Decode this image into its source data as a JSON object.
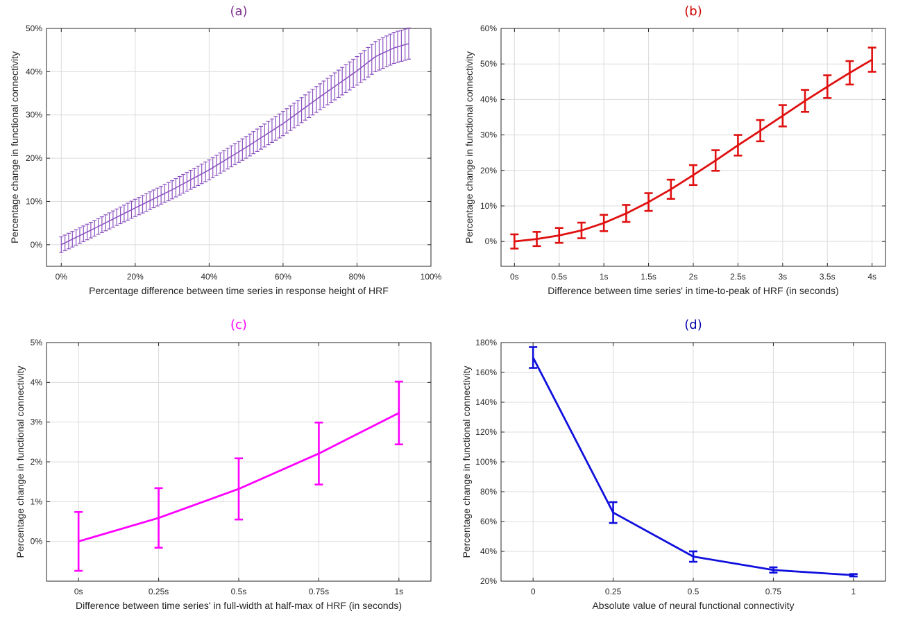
{
  "chart_data": [
    {
      "id": "a",
      "type": "errorbar-line",
      "title": "(a)",
      "title_color": "#7e2f8e",
      "xlabel": "Percentage difference between time series in response height of HRF",
      "ylabel": "Percentage change in functional connectivity",
      "xlim": [
        -4,
        100
      ],
      "ylim": [
        -5,
        50
      ],
      "xticks": [
        0,
        20,
        40,
        60,
        80,
        100
      ],
      "xtick_labels": [
        "0%",
        "20%",
        "40%",
        "60%",
        "80%",
        "100%"
      ],
      "yticks": [
        0,
        10,
        20,
        30,
        40,
        50
      ],
      "ytick_labels": [
        "0%",
        "10%",
        "20%",
        "30%",
        "40%",
        "50%"
      ],
      "grid": true,
      "color": "#8a50c0",
      "series": [
        {
          "name": "response height",
          "x_start": 0,
          "x_end": 94,
          "x_step": 1,
          "x_control": [
            0,
            10,
            20,
            30,
            40,
            50,
            60,
            70,
            80,
            85,
            90,
            94
          ],
          "y_control": [
            0,
            4.2,
            8.5,
            12.7,
            17.3,
            22.5,
            28,
            34.2,
            40.2,
            43.5,
            45.5,
            46.5
          ],
          "err_control": [
            1.8,
            1.8,
            2,
            2.1,
            2.3,
            2.5,
            2.8,
            3,
            3.3,
            3.5,
            3.6,
            3.6
          ]
        }
      ]
    },
    {
      "id": "b",
      "type": "errorbar-line",
      "title": "(b)",
      "title_color": "#cc0000",
      "xlabel": "Difference between time series' in time-to-peak of HRF (in seconds)",
      "ylabel": "Percentage change in functional connectivity",
      "xlim": [
        -0.15,
        4.15
      ],
      "ylim": [
        -7,
        60
      ],
      "xticks": [
        0,
        0.5,
        1,
        1.5,
        2,
        2.5,
        3,
        3.5,
        4
      ],
      "xtick_labels": [
        "0s",
        "0.5s",
        "1s",
        "1.5s",
        "2s",
        "2.5s",
        "3s",
        "3.5s",
        "4s"
      ],
      "yticks": [
        0,
        10,
        20,
        30,
        40,
        50,
        60
      ],
      "ytick_labels": [
        "0%",
        "10%",
        "20%",
        "30%",
        "40%",
        "50%",
        "60%"
      ],
      "grid": true,
      "color": "#e01010",
      "series": [
        {
          "name": "time-to-peak",
          "x": [
            0,
            0.25,
            0.5,
            0.75,
            1,
            1.25,
            1.5,
            1.75,
            2,
            2.25,
            2.5,
            2.75,
            3,
            3.25,
            3.5,
            3.75,
            4
          ],
          "y": [
            0,
            0.7,
            1.7,
            3.1,
            5.2,
            7.9,
            11.1,
            14.7,
            18.7,
            22.8,
            27.1,
            31.2,
            35.4,
            39.6,
            43.6,
            47.5,
            51.2
          ],
          "err": [
            2,
            2,
            2.1,
            2.2,
            2.3,
            2.4,
            2.5,
            2.7,
            2.8,
            2.9,
            2.9,
            3,
            3,
            3.1,
            3.2,
            3.3,
            3.4
          ]
        }
      ]
    },
    {
      "id": "c",
      "type": "errorbar-line",
      "title": "(c)",
      "title_color": "#ff00ff",
      "xlabel": "Difference between time series' in full-width at half-max of HRF (in seconds)",
      "ylabel": "Percentage change in functional connectivity",
      "xlim": [
        -0.1,
        1.1
      ],
      "ylim": [
        -1,
        5
      ],
      "xticks": [
        0,
        0.25,
        0.5,
        0.75,
        1
      ],
      "xtick_labels": [
        "0s",
        "0.25s",
        "0.5s",
        "0.75s",
        "1s"
      ],
      "yticks": [
        0,
        1,
        2,
        3,
        4,
        5
      ],
      "ytick_labels": [
        "0%",
        "1%",
        "2%",
        "3%",
        "4%",
        "5%"
      ],
      "grid": true,
      "color": "#ff00ff",
      "series": [
        {
          "name": "full-width at half-max",
          "x": [
            0,
            0.25,
            0.5,
            0.75,
            1
          ],
          "y": [
            0,
            0.59,
            1.32,
            2.21,
            3.23
          ],
          "err": [
            0.74,
            0.75,
            0.77,
            0.78,
            0.79
          ]
        }
      ]
    },
    {
      "id": "d",
      "type": "errorbar-line",
      "title": "(d)",
      "title_color": "#0000aa",
      "xlabel": "Absolute value of neural functional connectivity",
      "ylabel": "Percentage change in functional connectivity",
      "xlim": [
        -0.1,
        1.1
      ],
      "ylim": [
        20,
        180
      ],
      "xticks": [
        0,
        0.25,
        0.5,
        0.75,
        1
      ],
      "xtick_labels": [
        "0",
        "0.25",
        "0.5",
        "0.75",
        "1"
      ],
      "yticks": [
        20,
        40,
        60,
        80,
        100,
        120,
        140,
        160,
        180
      ],
      "ytick_labels": [
        "20%",
        "40%",
        "60%",
        "80%",
        "100%",
        "120%",
        "140%",
        "160%",
        "180%"
      ],
      "grid": true,
      "color": "#1010dd",
      "series": [
        {
          "name": "neural functional connectivity",
          "x": [
            0,
            0.25,
            0.5,
            0.75,
            1
          ],
          "y": [
            170,
            66,
            36.5,
            27.5,
            24
          ],
          "err": [
            7,
            7,
            3.5,
            1.8,
            0.8
          ]
        }
      ]
    }
  ]
}
